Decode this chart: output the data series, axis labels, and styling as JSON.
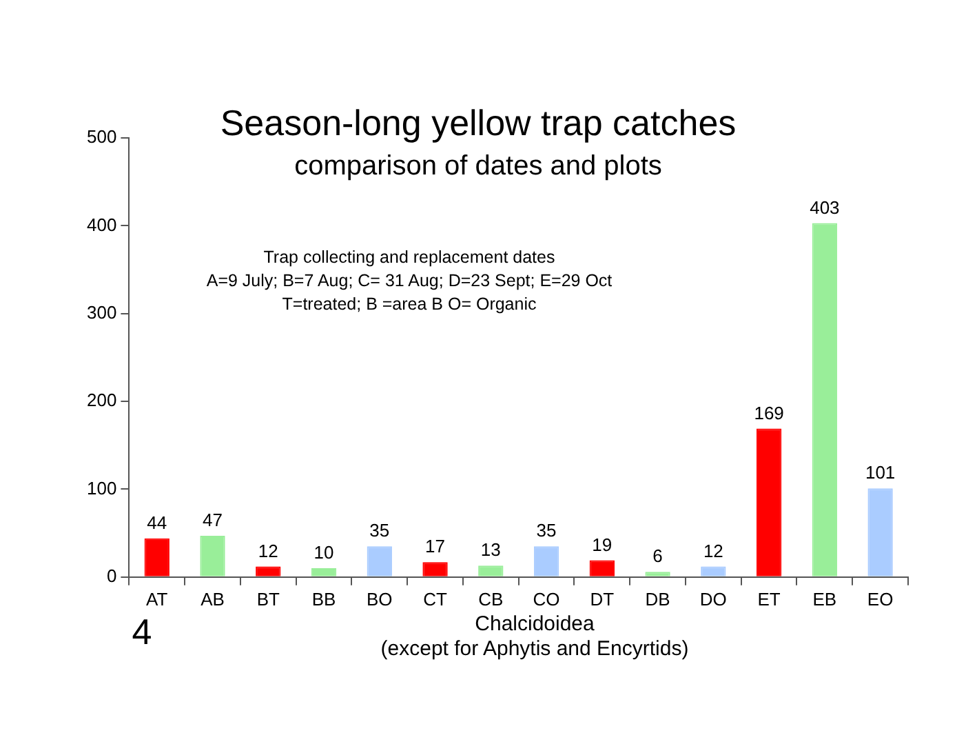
{
  "chart_data": {
    "type": "bar",
    "title": "Season-long yellow trap catches",
    "subtitle": "comparison of dates and plots",
    "xlabel": "Chalcidoidea\n(except for Aphytis and Encyrtids)",
    "categories": [
      "AT",
      "AB",
      "BT",
      "BB",
      "BO",
      "CT",
      "CB",
      "CO",
      "DT",
      "DB",
      "DO",
      "ET",
      "EB",
      "EO"
    ],
    "values": [
      44,
      47,
      12,
      10,
      35,
      17,
      13,
      35,
      19,
      6,
      12,
      169,
      403,
      101
    ],
    "colors": [
      "#ff0000",
      "#99ee99",
      "#ff0000",
      "#99ee99",
      "#aaccff",
      "#ff0000",
      "#99ee99",
      "#aaccff",
      "#ff0000",
      "#99ee99",
      "#aaccff",
      "#ff0000",
      "#99ee99",
      "#aaccff"
    ],
    "ylim": [
      0,
      500
    ],
    "yticks": [
      0,
      100,
      200,
      300,
      400,
      500
    ],
    "grid": false,
    "data_labels": true,
    "legend": false,
    "annotations": [
      "Trap collecting and replacement dates\nA=9 July; B=7 Aug; C= 31 Aug; D=23 Sept; E=29 Oct\nT=treated; B =area B O= Organic",
      "4"
    ]
  }
}
